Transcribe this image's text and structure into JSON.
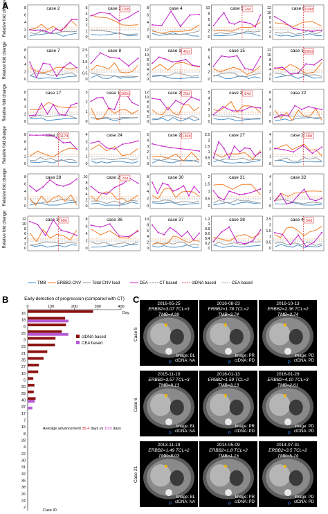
{
  "panel_labels": {
    "a": "A",
    "b": "B",
    "c": "C"
  },
  "panelA": {
    "ylabel": "Relative fold change",
    "cases": [
      {
        "title": "case 2",
        "lead": "",
        "y": [
          "8",
          "6",
          "4",
          "2",
          "0"
        ]
      },
      {
        "title": "case 3",
        "lead": "119d",
        "y": [
          "5",
          "4",
          "3",
          "2",
          "1",
          "0"
        ]
      },
      {
        "title": "case 4",
        "lead": "",
        "y": [
          "8",
          "6",
          "4",
          "2",
          "0"
        ]
      },
      {
        "title": "case 5",
        "lead": "24d",
        "y": [
          "10",
          "8",
          "6",
          "4",
          "2",
          "0"
        ]
      },
      {
        "title": "case 6",
        "lead": "164d",
        "y": [
          "12",
          "10",
          "8",
          "6",
          "4",
          "2",
          "0"
        ]
      },
      {
        "title": "case 7",
        "lead": "",
        "y": [
          "8",
          "6",
          "4",
          "2",
          "0"
        ]
      },
      {
        "title": "case 8",
        "lead": "",
        "y": [
          "2.5",
          "2",
          "1.5",
          "1",
          "0.5",
          "0"
        ]
      },
      {
        "title": "case 10",
        "lead": "45d",
        "y": [
          "12",
          "10",
          "8",
          "6",
          "4",
          "2",
          "0"
        ]
      },
      {
        "title": "case 15",
        "lead": "",
        "y": [
          "8",
          "6",
          "4",
          "2",
          "0"
        ]
      },
      {
        "title": "case 16",
        "lead": "280d",
        "y": [
          "12",
          "10",
          "8",
          "6",
          "4",
          "2",
          "0"
        ]
      },
      {
        "title": "case 17",
        "lead": "",
        "y": [
          "8",
          "6",
          "4",
          "2",
          "0"
        ]
      },
      {
        "title": "case 18",
        "lead": "160d",
        "y": [
          "3",
          "2",
          "1",
          "0"
        ]
      },
      {
        "title": "case 20",
        "lead": "29d",
        "y": [
          "12",
          "10",
          "8",
          "6",
          "4",
          "2",
          "0"
        ]
      },
      {
        "title": "case 21",
        "lead": "84d",
        "y": [
          "5",
          "4",
          "3",
          "2",
          "1",
          "0"
        ]
      },
      {
        "title": "case 22",
        "lead": "",
        "y": [
          "8",
          "6",
          "4",
          "2",
          "0"
        ]
      },
      {
        "title": "case 23",
        "lead": "117d",
        "y": [
          "8",
          "6",
          "4",
          "2",
          "0"
        ]
      },
      {
        "title": "case 24",
        "lead": "",
        "y": [
          "4",
          "3",
          "2",
          "1",
          "0"
        ]
      },
      {
        "title": "case 25",
        "lead": "146d",
        "y": [
          "5",
          "4",
          "3",
          "2",
          "1",
          "0"
        ]
      },
      {
        "title": "case 27",
        "lead": "",
        "y": [
          "2.5",
          "2",
          "1.5",
          "1",
          "0.5",
          "0"
        ]
      },
      {
        "title": "case 27",
        "lead": "48d",
        "y": [
          "4",
          "3",
          "2",
          "1",
          "0"
        ]
      },
      {
        "title": "case 28",
        "lead": "",
        "y": [
          "8",
          "6",
          "4",
          "2",
          "0"
        ]
      },
      {
        "title": "case 29",
        "lead": "26d",
        "y": [
          "10",
          "8",
          "6",
          "4",
          "2",
          "0"
        ]
      },
      {
        "title": "case 30",
        "lead": "",
        "y": [
          "8",
          "6",
          "4",
          "2",
          "0"
        ]
      },
      {
        "title": "case 31",
        "lead": "",
        "y": [
          "2",
          "1.5",
          "1",
          "0.5",
          "0"
        ]
      },
      {
        "title": "case 32",
        "lead": "",
        "y": [
          "4",
          "3",
          "2",
          "1",
          "0"
        ]
      },
      {
        "title": "case 35",
        "lead": "68d",
        "y": [
          "12",
          "10",
          "8",
          "6",
          "4",
          "2",
          "0"
        ]
      },
      {
        "title": "case 36",
        "lead": "",
        "y": [
          "8",
          "6",
          "4",
          "2",
          "0"
        ]
      },
      {
        "title": "case 37",
        "lead": "",
        "y": [
          "10",
          "8",
          "6",
          "4",
          "2",
          "0"
        ]
      },
      {
        "title": "case 38",
        "lead": "",
        "y": [
          "1.2",
          "1",
          "0.8",
          "0.6",
          "0.4",
          "0.2",
          "0"
        ]
      },
      {
        "title": "case 40",
        "lead": "34d",
        "y": [
          "2.5",
          "2",
          "1.5",
          "1",
          "0.5",
          "0"
        ]
      }
    ],
    "legend": [
      "TMB",
      "ERBB2-CNV",
      "Total CNV load",
      "CEA",
      "CT based",
      "ctDNA based",
      "CEA based"
    ],
    "colors": {
      "TMB": "#4a90c8",
      "ERBB2": "#f07e26",
      "CNV": "#999999",
      "CEA": "#c21fc7",
      "ctdna": "#d62728"
    }
  },
  "panelB": {
    "title": "Early detection of progression (compared with CT)",
    "xlabel": "Day",
    "ylabel": "Case ID",
    "ticks": [
      "0",
      "100",
      "200",
      "300",
      "400"
    ],
    "legend": [
      "ctDNA based",
      "CEA based"
    ],
    "note_prefix": "Average advancement",
    "note_ct": "38.4",
    "note_mid": "days vs",
    "note_cea": "10.0",
    "note_suffix": "days"
  },
  "chart_data": {
    "type": "bar",
    "title": "Early detection of progression (compared with CT)",
    "xlabel": "Day",
    "ylabel": "Case ID",
    "categories": [
      "16",
      "18",
      "6",
      "25",
      "3",
      "23",
      "21",
      "35",
      "27",
      "10",
      "5",
      "20",
      "29",
      "40",
      "37",
      "17",
      "7",
      "15",
      "8",
      "28",
      "4",
      "22",
      "30",
      "31",
      "32",
      "36",
      "38",
      "26",
      "24",
      "2"
    ],
    "series": [
      {
        "name": "ctDNA based",
        "values": [
          280,
          160,
          164,
          146,
          119,
          117,
          84,
          68,
          48,
          45,
          24,
          29,
          26,
          34,
          0,
          0,
          0,
          0,
          0,
          0,
          0,
          0,
          0,
          0,
          0,
          0,
          0,
          0,
          0,
          0
        ]
      },
      {
        "name": "CEA based",
        "values": [
          0,
          175,
          0,
          174,
          0,
          0,
          0,
          0,
          0,
          0,
          0,
          0,
          0,
          30,
          20,
          0,
          0,
          0,
          0,
          0,
          0,
          0,
          0,
          0,
          0,
          0,
          0,
          0,
          0,
          0
        ]
      }
    ],
    "xlim": [
      0,
      400
    ]
  },
  "panelC": {
    "rows": [
      "Case 5",
      "Case 6",
      "Case 21"
    ],
    "panels": [
      {
        "date": "2016-05-25",
        "info": "ERBB2=3.07  TCL=3  TMB=4.99",
        "image": "Image: BL",
        "ctdna": "ctDNA: NA",
        "p": "P"
      },
      {
        "date": "2016-08-23",
        "info": "ERBB2=1.78  TCL=2  TMB=3.74",
        "image": "Image: PR",
        "ctdna": "ctDNA: PD",
        "p": "P"
      },
      {
        "date": "2016-10-13",
        "info": "ERBB2=2.36  TCL=2  TMB=3.74",
        "image": "Image: PD",
        "ctdna": "ctDNA: PD",
        "p": "P"
      },
      {
        "date": "2015-11-10",
        "info": "ERBB2=3.57  TCL=3  TMB=9.13",
        "image": "Image: BL",
        "ctdna": "ctDNA: NA",
        "p": "P"
      },
      {
        "date": "2016-01-13",
        "info": "ERBB2=1.59  TCL=2  TMB=3.13",
        "image": "Image: PR",
        "ctdna": "ctDNA: PD",
        "p": "P"
      },
      {
        "date": "2016-01-29",
        "info": "ERBB2=4.10  TCL=3  TMB=2.61",
        "image": "Image: PD",
        "ctdna": "ctDNA: PD",
        "p": "P"
      },
      {
        "date": "2013-11-19",
        "info": "ERBB2=1.49  TCL=2  TMB=8.03",
        "image": "Image: BL",
        "ctdna": "ctDNA: NA",
        "p": "P"
      },
      {
        "date": "2014-05-09",
        "info": "ERBB2=1.8  TCL=2  TMB=1.15",
        "image": "Image: PR",
        "ctdna": "ctDNA: PD",
        "p": "P"
      },
      {
        "date": "2014-07-31",
        "info": "ERBB2=3.5  TCL=2  TMB=5.74",
        "image": "Image: PD",
        "ctdna": "ctDNA: PD",
        "p": "P"
      }
    ]
  }
}
